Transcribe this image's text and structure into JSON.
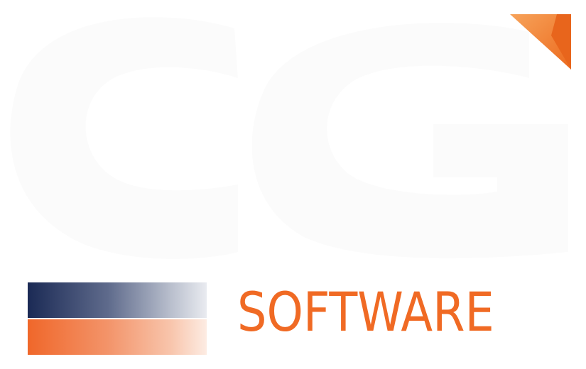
{
  "logo": {
    "wordmark": "SOFTWARE",
    "monogram": "CG",
    "colors": {
      "orange": "#f06a24",
      "navy": "#1b2a55",
      "watermark": "#fbfbfb"
    }
  }
}
